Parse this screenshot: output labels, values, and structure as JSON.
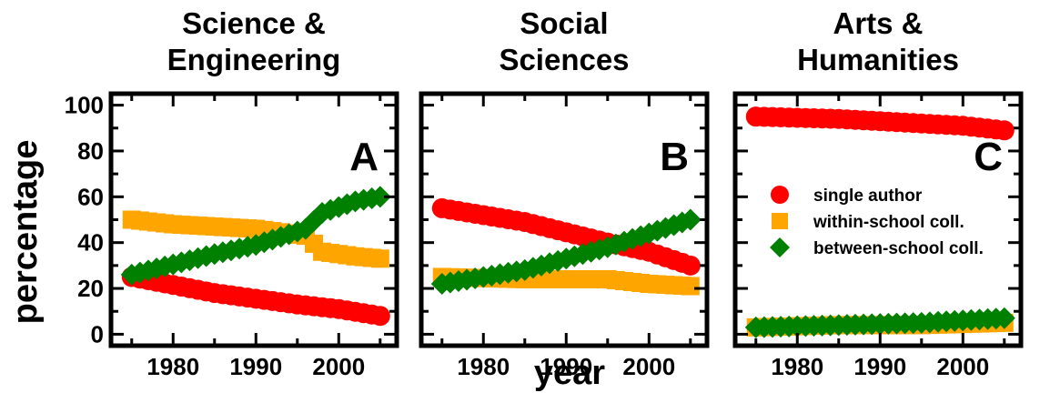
{
  "figure": {
    "ylabel": "percentage",
    "xlabel": "year"
  },
  "legend": {
    "placement": "inside panel C, right",
    "items": [
      {
        "label": "single author",
        "color": "#ff0000",
        "marker": "circle"
      },
      {
        "label": "within-school coll.",
        "color": "#ffa500",
        "marker": "square"
      },
      {
        "label": "between-school coll.",
        "color": "#008000",
        "marker": "diamond"
      }
    ]
  },
  "chart_data": [
    {
      "type": "scatter",
      "panel_label": "A",
      "title_lines": [
        "Science &",
        "Engineering"
      ],
      "xlim": [
        1972.5,
        2007
      ],
      "ylim": [
        -5,
        105
      ],
      "xticks": [
        1980,
        1990,
        2000
      ],
      "yticks": [
        0,
        20,
        40,
        60,
        80,
        100
      ],
      "x": [
        1975,
        2005
      ],
      "series": [
        {
          "name": "single author",
          "color": "#ff0000",
          "marker": "circle",
          "points": [
            [
              1975,
              25
            ],
            [
              1985,
              18
            ],
            [
              1995,
              13
            ],
            [
              2000,
              11
            ],
            [
              2005,
              8
            ]
          ]
        },
        {
          "name": "within-school coll.",
          "color": "#ffa500",
          "marker": "square",
          "points": [
            [
              1975,
              50
            ],
            [
              1980,
              48
            ],
            [
              1990,
              46
            ],
            [
              1996,
              43
            ],
            [
              1998,
              36
            ],
            [
              2002,
              34
            ],
            [
              2005,
              33
            ]
          ]
        },
        {
          "name": "between-school coll.",
          "color": "#008000",
          "marker": "diamond",
          "points": [
            [
              1975,
              26
            ],
            [
              1985,
              35
            ],
            [
              1990,
              39
            ],
            [
              1996,
              46
            ],
            [
              1998,
              53
            ],
            [
              2002,
              58
            ],
            [
              2005,
              60
            ]
          ]
        }
      ]
    },
    {
      "type": "scatter",
      "panel_label": "B",
      "title_lines": [
        "Social",
        "Sciences"
      ],
      "xlim": [
        1972.5,
        2007
      ],
      "ylim": [
        -5,
        105
      ],
      "xticks": [
        1980,
        1990,
        2000
      ],
      "yticks": [
        0,
        20,
        40,
        60,
        80,
        100
      ],
      "series": [
        {
          "name": "single author",
          "color": "#ff0000",
          "marker": "circle",
          "points": [
            [
              1975,
              55
            ],
            [
              1985,
              49
            ],
            [
              1995,
              40
            ],
            [
              2000,
              36
            ],
            [
              2005,
              30
            ]
          ]
        },
        {
          "name": "within-school coll.",
          "color": "#ffa500",
          "marker": "square",
          "points": [
            [
              1975,
              25
            ],
            [
              1985,
              24
            ],
            [
              1995,
              24
            ],
            [
              2000,
              22
            ],
            [
              2005,
              21
            ]
          ]
        },
        {
          "name": "between-school coll.",
          "color": "#008000",
          "marker": "diamond",
          "points": [
            [
              1975,
              22
            ],
            [
              1985,
              28
            ],
            [
              1995,
              38
            ],
            [
              2000,
              44
            ],
            [
              2005,
              50
            ]
          ]
        }
      ]
    },
    {
      "type": "scatter",
      "panel_label": "C",
      "title_lines": [
        "Arts &",
        "Humanities"
      ],
      "xlim": [
        1972.5,
        2007
      ],
      "ylim": [
        -5,
        105
      ],
      "xticks": [
        1980,
        1990,
        2000
      ],
      "yticks": [
        0,
        20,
        40,
        60,
        80,
        100
      ],
      "series": [
        {
          "name": "single author",
          "color": "#ff0000",
          "marker": "circle",
          "points": [
            [
              1975,
              95
            ],
            [
              1985,
              94
            ],
            [
              1995,
              92
            ],
            [
              2000,
              91
            ],
            [
              2005,
              89
            ]
          ]
        },
        {
          "name": "within-school coll.",
          "color": "#ffa500",
          "marker": "square",
          "points": [
            [
              1975,
              3
            ],
            [
              1985,
              4
            ],
            [
              1995,
              4
            ],
            [
              2005,
              5
            ]
          ]
        },
        {
          "name": "between-school coll.",
          "color": "#008000",
          "marker": "diamond",
          "points": [
            [
              1975,
              3
            ],
            [
              1985,
              4
            ],
            [
              1995,
              5
            ],
            [
              2000,
              6
            ],
            [
              2005,
              7
            ]
          ]
        }
      ]
    }
  ]
}
